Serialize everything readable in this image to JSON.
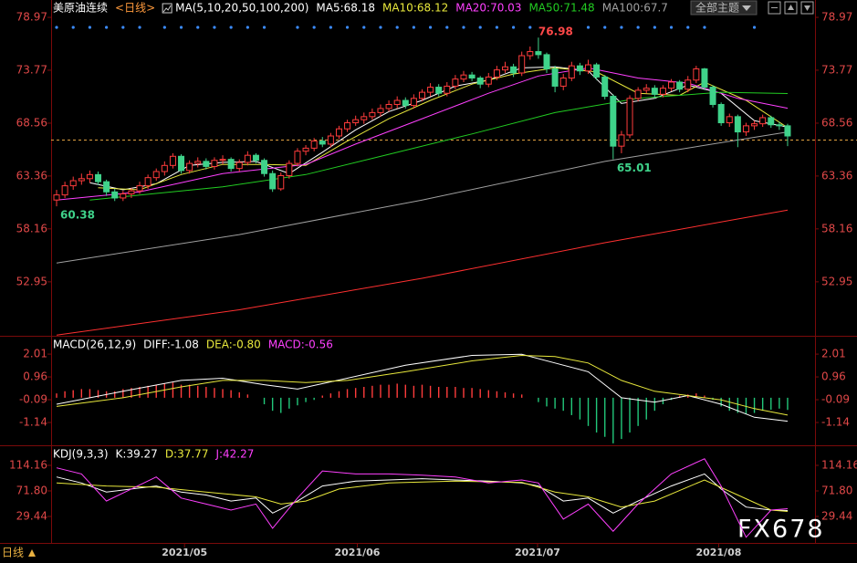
{
  "header": {
    "symbol": "美原油连续",
    "period": "<日线>",
    "theme_button": "全部主题"
  },
  "footer": {
    "period_button": "日线"
  },
  "watermark": "FX678",
  "chart_data": [
    {
      "type": "candlestick",
      "indicator": "MA(5,10,20,50,100,200)",
      "xlim": [
        -0.66,
        91.3
      ],
      "ylim": [
        47.64,
        79.78
      ],
      "yticks": [
        52.95,
        58.16,
        63.36,
        68.56,
        73.77,
        78.97
      ],
      "up_color": "#ff3c3c",
      "down_color": "#3fd28a",
      "ohlc": [
        [
          61.0,
          62.0,
          60.38,
          61.5
        ],
        [
          61.5,
          62.8,
          61.2,
          62.4
        ],
        [
          62.4,
          63.3,
          62.0,
          62.9
        ],
        [
          62.9,
          63.6,
          62.5,
          63.1
        ],
        [
          63.1,
          63.9,
          62.7,
          63.5
        ],
        [
          63.5,
          63.8,
          62.5,
          62.8
        ],
        [
          62.8,
          63.0,
          61.4,
          61.8
        ],
        [
          61.8,
          62.1,
          60.9,
          61.2
        ],
        [
          61.2,
          61.9,
          60.9,
          61.6
        ],
        [
          61.6,
          62.2,
          61.2,
          61.9
        ],
        [
          61.9,
          62.8,
          61.6,
          62.4
        ],
        [
          62.4,
          63.5,
          62.1,
          63.2
        ],
        [
          63.2,
          64.1,
          62.9,
          63.8
        ],
        [
          63.8,
          64.8,
          63.4,
          64.4
        ],
        [
          64.4,
          65.6,
          64.1,
          65.3
        ],
        [
          65.3,
          65.5,
          63.6,
          63.9
        ],
        [
          63.9,
          64.9,
          63.6,
          64.6
        ],
        [
          64.6,
          65.2,
          64.2,
          64.8
        ],
        [
          64.8,
          65.1,
          64.0,
          64.3
        ],
        [
          64.3,
          65.2,
          64.0,
          64.9
        ],
        [
          64.9,
          65.4,
          64.5,
          65.0
        ],
        [
          65.0,
          65.2,
          63.8,
          64.1
        ],
        [
          64.1,
          65.0,
          63.8,
          64.7
        ],
        [
          64.7,
          65.8,
          64.4,
          65.4
        ],
        [
          65.4,
          65.6,
          64.6,
          64.9
        ],
        [
          64.9,
          65.1,
          63.3,
          63.6
        ],
        [
          63.6,
          63.9,
          61.8,
          62.1
        ],
        [
          62.1,
          63.7,
          61.9,
          63.4
        ],
        [
          63.4,
          64.9,
          63.1,
          64.6
        ],
        [
          64.6,
          66.1,
          64.3,
          65.8
        ],
        [
          65.8,
          66.4,
          65.4,
          66.1
        ],
        [
          66.1,
          67.1,
          65.8,
          66.8
        ],
        [
          66.8,
          67.2,
          66.2,
          66.5
        ],
        [
          66.5,
          67.6,
          66.2,
          67.3
        ],
        [
          67.3,
          68.3,
          67.0,
          68.0
        ],
        [
          68.0,
          68.9,
          67.7,
          68.6
        ],
        [
          68.6,
          69.3,
          68.3,
          68.9
        ],
        [
          68.9,
          69.6,
          68.5,
          69.2
        ],
        [
          69.2,
          70.0,
          68.9,
          69.6
        ],
        [
          69.6,
          70.4,
          69.2,
          70.0
        ],
        [
          70.0,
          70.8,
          69.7,
          70.4
        ],
        [
          70.4,
          71.2,
          70.0,
          70.8
        ],
        [
          70.8,
          71.1,
          70.0,
          70.3
        ],
        [
          70.3,
          71.4,
          70.0,
          71.0
        ],
        [
          71.0,
          71.9,
          70.7,
          71.6
        ],
        [
          71.6,
          72.5,
          71.2,
          72.1
        ],
        [
          72.1,
          72.4,
          71.2,
          71.5
        ],
        [
          71.5,
          72.6,
          71.2,
          72.2
        ],
        [
          72.2,
          73.3,
          71.9,
          72.9
        ],
        [
          72.9,
          73.7,
          72.6,
          73.3
        ],
        [
          73.3,
          73.6,
          72.7,
          73.0
        ],
        [
          73.0,
          73.2,
          72.0,
          72.4
        ],
        [
          72.4,
          73.5,
          72.1,
          73.1
        ],
        [
          73.1,
          74.2,
          72.8,
          73.8
        ],
        [
          73.8,
          74.6,
          73.5,
          74.1
        ],
        [
          74.1,
          74.4,
          73.1,
          73.5
        ],
        [
          73.5,
          75.6,
          73.2,
          75.2
        ],
        [
          75.2,
          76.1,
          74.8,
          75.6
        ],
        [
          75.6,
          76.98,
          74.9,
          75.3
        ],
        [
          75.3,
          75.5,
          73.5,
          73.9
        ],
        [
          73.9,
          74.2,
          71.6,
          72.2
        ],
        [
          72.2,
          73.4,
          71.8,
          73.0
        ],
        [
          73.0,
          74.6,
          72.7,
          74.2
        ],
        [
          74.2,
          74.5,
          73.3,
          73.7
        ],
        [
          73.7,
          74.8,
          73.4,
          74.3
        ],
        [
          74.3,
          74.5,
          72.8,
          73.1
        ],
        [
          73.1,
          73.3,
          70.9,
          71.2
        ],
        [
          71.2,
          71.4,
          65.01,
          66.3
        ],
        [
          66.3,
          67.8,
          65.6,
          67.4
        ],
        [
          67.4,
          71.3,
          67.1,
          71.0
        ],
        [
          71.0,
          72.1,
          70.7,
          71.8
        ],
        [
          71.8,
          72.4,
          71.5,
          72.0
        ],
        [
          72.0,
          72.3,
          71.0,
          71.4
        ],
        [
          71.4,
          72.3,
          71.1,
          72.0
        ],
        [
          72.0,
          72.9,
          71.7,
          72.6
        ],
        [
          72.6,
          72.8,
          71.6,
          71.9
        ],
        [
          71.9,
          73.2,
          71.6,
          72.8
        ],
        [
          72.8,
          74.2,
          72.5,
          73.9
        ],
        [
          73.9,
          74.0,
          71.8,
          72.1
        ],
        [
          72.1,
          72.3,
          70.1,
          70.4
        ],
        [
          70.4,
          70.6,
          68.3,
          68.6
        ],
        [
          68.6,
          69.5,
          68.2,
          69.2
        ],
        [
          69.2,
          69.4,
          66.2,
          67.7
        ],
        [
          67.7,
          68.6,
          67.3,
          68.3
        ],
        [
          68.3,
          68.8,
          67.9,
          68.5
        ],
        [
          68.5,
          69.4,
          68.2,
          69.1
        ],
        [
          69.1,
          69.3,
          68.1,
          68.4
        ],
        [
          68.4,
          68.7,
          67.9,
          68.3
        ],
        [
          68.3,
          68.5,
          66.3,
          67.3
        ]
      ],
      "price_line": {
        "value": 66.9,
        "color": "#e0a040"
      },
      "annotations": [
        {
          "x": 58,
          "value": 76.98,
          "color": "#ff4848"
        },
        {
          "x": 67,
          "value": 65.01,
          "color": "#3fd28a"
        },
        {
          "x": 0,
          "value": 60.38,
          "color": "#3fd28a"
        }
      ],
      "markers": {
        "color": "#3c8cff",
        "x": [
          0,
          2,
          4,
          6,
          8,
          10,
          13,
          15,
          17,
          19,
          21,
          23,
          25,
          29,
          31,
          33,
          35,
          37,
          39,
          41,
          43,
          45,
          47,
          49,
          51,
          53,
          55,
          57,
          64,
          66,
          68,
          70,
          72,
          74,
          76,
          78,
          84
        ]
      },
      "series": [
        {
          "name": "MA5:68.18",
          "color": "#ffffff",
          "x": [
            4,
            8,
            12,
            16,
            20,
            24,
            28,
            32,
            36,
            40,
            44,
            48,
            52,
            56,
            60,
            64,
            68,
            72,
            76,
            80,
            84,
            88
          ],
          "values": [
            62.7,
            62.0,
            62.6,
            64.4,
            64.7,
            64.8,
            63.6,
            65.7,
            67.9,
            69.7,
            70.8,
            72.2,
            72.8,
            74.0,
            74.1,
            73.7,
            70.5,
            71.0,
            72.3,
            71.5,
            68.8,
            68.18
          ]
        },
        {
          "name": "MA10:68.12",
          "color": "#e8e83c",
          "x": [
            5,
            10,
            15,
            20,
            25,
            30,
            35,
            40,
            45,
            50,
            55,
            60,
            65,
            70,
            75,
            78,
            83,
            88
          ],
          "values": [
            62.2,
            62.0,
            63.5,
            64.5,
            64.5,
            64.4,
            66.8,
            69.0,
            70.8,
            72.4,
            73.4,
            74.0,
            73.6,
            71.5,
            71.3,
            72.6,
            70.8,
            68.12
          ]
        },
        {
          "name": "MA20:70.03",
          "color": "#ff40ff",
          "x": [
            0,
            10,
            20,
            30,
            36,
            44,
            52,
            58,
            64,
            70,
            76,
            82,
            88
          ],
          "values": [
            61.0,
            61.8,
            63.6,
            64.5,
            66.5,
            69.0,
            71.5,
            73.2,
            74.0,
            73.0,
            72.5,
            71.0,
            70.03
          ]
        },
        {
          "name": "MA50:71.48",
          "color": "#22cc22",
          "x": [
            4,
            20,
            30,
            40,
            50,
            60,
            70,
            80,
            88
          ],
          "values": [
            61.0,
            62.3,
            63.5,
            65.5,
            67.5,
            69.6,
            71.0,
            71.6,
            71.48
          ]
        },
        {
          "name": "MA100:67.7",
          "color": "#a0a0a0",
          "x": [
            0,
            22,
            44,
            66,
            88
          ],
          "values": [
            54.8,
            57.6,
            61.0,
            64.8,
            67.7
          ]
        },
        {
          "color": "#ff3030",
          "x": [
            0,
            22,
            44,
            66,
            88
          ],
          "values": [
            47.7,
            50.2,
            53.3,
            56.8,
            60.0
          ]
        }
      ]
    },
    {
      "type": "macd",
      "indicator": "MACD(26,12,9)",
      "ylim": [
        -2.19,
        2.77
      ],
      "yticks": [
        -1.14,
        -0.09,
        0.96,
        2.01
      ],
      "up_color": "#ff3c3c",
      "down_color": "#22c87a",
      "series": [
        {
          "name": "DIFF:-1.08",
          "color": "#ffffff",
          "x": [
            0,
            8,
            15,
            20,
            25,
            29,
            35,
            42,
            50,
            56,
            60,
            64,
            68,
            72,
            76,
            80,
            84,
            88
          ],
          "values": [
            -0.3,
            0.3,
            0.8,
            0.9,
            0.6,
            0.4,
            0.9,
            1.5,
            1.95,
            2.0,
            1.6,
            1.2,
            0.0,
            -0.2,
            0.1,
            -0.3,
            -0.9,
            -1.08
          ]
        },
        {
          "name": "DEA:-0.80",
          "color": "#e8e83c",
          "x": [
            0,
            8,
            15,
            20,
            25,
            30,
            35,
            42,
            50,
            56,
            60,
            64,
            68,
            72,
            76,
            80,
            84,
            88
          ],
          "values": [
            -0.4,
            0.0,
            0.5,
            0.8,
            0.8,
            0.7,
            0.8,
            1.2,
            1.7,
            1.95,
            1.9,
            1.6,
            0.8,
            0.3,
            0.1,
            -0.1,
            -0.5,
            -0.8
          ]
        },
        {
          "name": "MACD:-0.56",
          "color": "#ff40ff",
          "kind": "histogram",
          "values": [
            0.2,
            0.3,
            0.35,
            0.4,
            0.4,
            0.35,
            0.3,
            0.3,
            0.4,
            0.45,
            0.5,
            0.55,
            0.6,
            0.65,
            0.7,
            0.6,
            0.6,
            0.55,
            0.5,
            0.45,
            0.4,
            0.35,
            0.25,
            0.15,
            0.0,
            -0.3,
            -0.6,
            -0.7,
            -0.5,
            -0.35,
            -0.2,
            -0.1,
            0.1,
            0.2,
            0.3,
            0.4,
            0.45,
            0.5,
            0.55,
            0.6,
            0.6,
            0.65,
            0.6,
            0.55,
            0.6,
            0.55,
            0.5,
            0.5,
            0.5,
            0.45,
            0.45,
            0.4,
            0.35,
            0.3,
            0.25,
            0.2,
            0.15,
            0.0,
            -0.2,
            -0.4,
            -0.5,
            -0.6,
            -0.8,
            -1.0,
            -1.3,
            -1.6,
            -1.8,
            -2.1,
            -1.9,
            -1.6,
            -1.3,
            -1.0,
            -0.6,
            -0.3,
            -0.1,
            0.1,
            0.15,
            0.2,
            0.1,
            -0.1,
            -0.4,
            -0.6,
            -0.7,
            -0.75,
            -0.7,
            -0.6,
            -0.55,
            -0.5,
            -0.56
          ]
        }
      ]
    },
    {
      "type": "kdj",
      "indicator": "KDJ(9,3,3)",
      "ylim": [
        -14.4,
        144.4
      ],
      "yticks": [
        29.44,
        {
          "value": 71.8,
          "label": "71.80"
        },
        114.16
      ],
      "xticks": [
        {
          "value": 15.4,
          "label": "2021/05"
        },
        {
          "value": 36.2,
          "label": "2021/06"
        },
        {
          "value": 57.9,
          "label": "2021/07"
        },
        {
          "value": 79.7,
          "label": "2021/08"
        }
      ],
      "series": [
        {
          "name": "K:39.27",
          "color": "#ffffff",
          "x": [
            0,
            3,
            6,
            9,
            12,
            15,
            18,
            21,
            24,
            26,
            29,
            32,
            36,
            40,
            44,
            48,
            52,
            56,
            58,
            61,
            64,
            67,
            70,
            74,
            78,
            80,
            83,
            86,
            88
          ],
          "values": [
            95,
            85,
            70,
            75,
            80,
            70,
            65,
            55,
            60,
            35,
            55,
            80,
            88,
            90,
            92,
            90,
            88,
            85,
            80,
            55,
            60,
            35,
            55,
            80,
            100,
            75,
            45,
            40,
            39.27
          ]
        },
        {
          "name": "D:37.77",
          "color": "#e8e83c",
          "x": [
            0,
            6,
            12,
            18,
            24,
            27,
            30,
            34,
            40,
            48,
            56,
            60,
            64,
            68,
            72,
            78,
            82,
            86,
            88
          ],
          "values": [
            85,
            80,
            78,
            70,
            62,
            50,
            55,
            75,
            85,
            88,
            86,
            70,
            62,
            45,
            55,
            90,
            65,
            40,
            37.77
          ]
        },
        {
          "name": "J:42.27",
          "color": "#ff40ff",
          "x": [
            0,
            3,
            6,
            9,
            12,
            15,
            18,
            21,
            24,
            26,
            29,
            32,
            36,
            40,
            44,
            48,
            52,
            56,
            58,
            61,
            64,
            67,
            70,
            74,
            78,
            80,
            83,
            86,
            88
          ],
          "values": [
            110,
            100,
            55,
            75,
            95,
            60,
            50,
            40,
            50,
            10,
            60,
            105,
            100,
            100,
            98,
            95,
            85,
            90,
            85,
            25,
            50,
            5,
            50,
            100,
            125,
            80,
            -5,
            40,
            42.27
          ]
        }
      ]
    }
  ]
}
